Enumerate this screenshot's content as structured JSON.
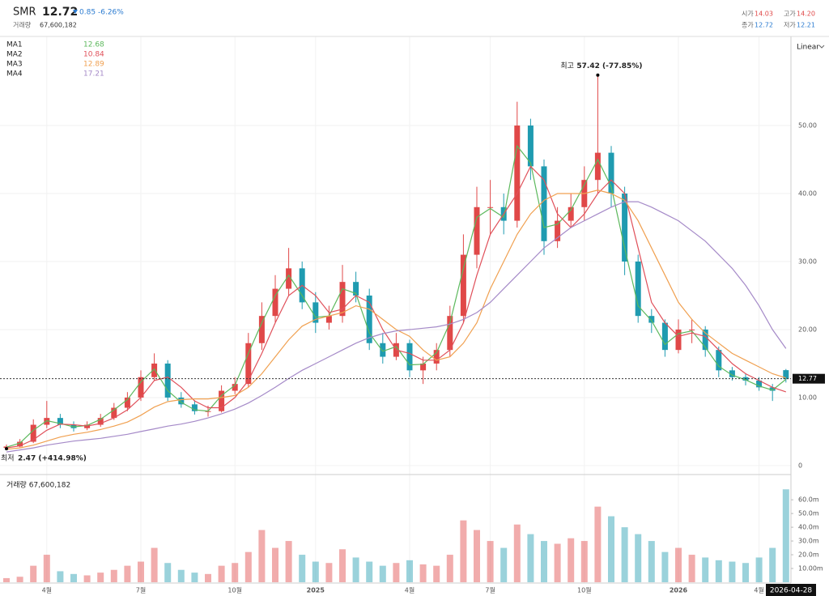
{
  "header": {
    "symbol": "SMR",
    "price": "12.72",
    "change": "0.85",
    "change_pct": "-6.26%",
    "volume_label": "거래량",
    "volume": "67,600,182",
    "ohlc": [
      {
        "label": "시가",
        "value": "14.03"
      },
      {
        "label": "고가",
        "value": "14.20"
      },
      {
        "label": "종가",
        "value": "12.72"
      },
      {
        "label": "저가",
        "value": "12.21"
      }
    ],
    "scale": "Linear"
  },
  "chart_data": {
    "type": "candlestick",
    "up_color": "#e04848",
    "down_color": "#1f9bb0",
    "xticks": [
      {
        "value": 3,
        "label": "4월"
      },
      {
        "value": 10,
        "label": "7월"
      },
      {
        "value": 17,
        "label": "10월"
      },
      {
        "value": 23,
        "label": "2025"
      },
      {
        "value": 30,
        "label": "4월"
      },
      {
        "value": 36,
        "label": "7월"
      },
      {
        "value": 43,
        "label": "10월"
      },
      {
        "value": 50,
        "label": "2026"
      },
      {
        "value": 56,
        "label": "4월"
      }
    ],
    "crosshair_date": "2026-04-28",
    "ylim": [
      -1.2,
      63.1
    ],
    "yticks": [
      0,
      {
        "value": 10,
        "label": "10.00"
      },
      {
        "value": 20,
        "label": "20.00"
      },
      {
        "value": 30,
        "label": "30.00"
      },
      {
        "value": 40,
        "label": "40.00"
      },
      {
        "value": 50,
        "label": "50.00"
      }
    ],
    "price_line": {
      "value": 12.77,
      "label": "12.77"
    },
    "open": [
      2.6,
      2.8,
      3.5,
      6,
      7,
      6,
      5.5,
      6,
      7,
      8.5,
      10,
      13,
      15,
      10,
      9,
      8,
      8,
      11,
      12,
      18,
      22,
      26,
      29,
      24,
      21,
      22,
      27,
      25,
      18,
      16,
      18,
      14,
      15,
      17,
      22,
      31,
      38,
      38,
      36,
      50,
      44,
      33,
      36,
      38,
      42,
      46,
      40,
      30,
      22,
      21,
      17,
      20,
      20,
      17,
      14,
      13,
      12.5,
      11.5,
      14.03
    ],
    "high": [
      3.1,
      3.9,
      6.8,
      9.5,
      7.6,
      6.5,
      6.5,
      7.6,
      9.2,
      10.8,
      14,
      16.5,
      15.5,
      10.8,
      9.6,
      8.8,
      11.8,
      13,
      19.5,
      24,
      28,
      32,
      30,
      25.5,
      23.5,
      29.5,
      28.5,
      26,
      19.5,
      19.5,
      18.5,
      16,
      18,
      23.5,
      34,
      41,
      42,
      40,
      53.5,
      51,
      45,
      38,
      40,
      44,
      57.42,
      47,
      41,
      31,
      23,
      21.5,
      21.5,
      21.5,
      20.5,
      17.5,
      14.5,
      13.5,
      13,
      12,
      14.2
    ],
    "low": [
      2.47,
      2.7,
      3.3,
      5.5,
      5.5,
      5,
      5.2,
      5.7,
      6.7,
      8,
      9.5,
      12.5,
      9.5,
      8.5,
      7.5,
      7.2,
      7.8,
      10.5,
      11.5,
      17,
      21,
      25,
      23,
      19.5,
      20,
      21,
      24,
      17,
      15,
      15.5,
      13,
      12,
      14,
      16,
      21,
      29,
      34,
      34,
      35,
      42,
      31,
      32,
      35,
      36,
      40,
      38,
      28,
      21,
      19.5,
      16,
      16.5,
      18,
      16,
      13,
      12.5,
      11.8,
      11,
      9.5,
      12.21
    ],
    "close": [
      2.8,
      3.5,
      6,
      7,
      6,
      5.5,
      6,
      7,
      8.5,
      10,
      13,
      15,
      10,
      9,
      8,
      8,
      11,
      12,
      18,
      22,
      26,
      29,
      24,
      21,
      22,
      27,
      25,
      18,
      16,
      18,
      14,
      15,
      17,
      22,
      31,
      38,
      38,
      36,
      50,
      44,
      33,
      36,
      38,
      42,
      46,
      40,
      30,
      22,
      21,
      17,
      20,
      20,
      17,
      14,
      13,
      12.5,
      11.5,
      11,
      12.72
    ],
    "series": [
      {
        "name": "MA1",
        "color": "#5cb85c",
        "values": [
          2.7,
          3.3,
          5.2,
          6.6,
          6.2,
          5.7,
          5.9,
          6.8,
          8.2,
          9.7,
          12.3,
          14.2,
          11,
          9.3,
          8.2,
          8,
          10.3,
          11.8,
          16.5,
          21,
          25,
          28,
          25,
          21.8,
          22,
          26,
          25.3,
          19.5,
          16.8,
          17.5,
          14.8,
          14.9,
          16.6,
          21,
          29,
          36.5,
          37.8,
          36.5,
          47,
          44.5,
          35,
          35.5,
          37.6,
          41.3,
          45,
          41,
          32,
          23.5,
          21.3,
          17.8,
          19.4,
          19.8,
          17.4,
          14.6,
          13.3,
          12.6,
          11.7,
          11.1,
          12.68
        ]
      },
      {
        "name": "MA2",
        "color": "#e0505a",
        "values": [
          2.6,
          2.9,
          3.8,
          5.2,
          6.1,
          6,
          5.8,
          6.2,
          7,
          8.2,
          10,
          12.5,
          13,
          11.5,
          9.5,
          8.5,
          8.5,
          10,
          12.5,
          16.5,
          21,
          25,
          26.5,
          25,
          22.5,
          23,
          25,
          24,
          20,
          17,
          16.5,
          15.5,
          15.5,
          17,
          21,
          28,
          34,
          37,
          40,
          44,
          42,
          37,
          35,
          37,
          40,
          42,
          40,
          32,
          24,
          21,
          19,
          19.5,
          19,
          17,
          15,
          13.5,
          12.5,
          11.5,
          10.84
        ]
      },
      {
        "name": "MA3",
        "color": "#f0a050",
        "values": [
          2.4,
          2.6,
          3,
          3.6,
          4.2,
          4.6,
          4.9,
          5.3,
          5.8,
          6.4,
          7.4,
          8.6,
          9.4,
          9.7,
          9.8,
          9.8,
          10,
          10.3,
          11.5,
          13.5,
          16,
          18.5,
          20.5,
          21.5,
          22,
          22.5,
          23.5,
          23,
          21.5,
          20,
          19,
          17,
          15.5,
          16,
          18,
          21,
          26,
          30,
          34,
          37,
          39,
          40,
          40,
          40,
          40.5,
          40,
          39,
          36,
          32,
          28,
          24,
          21.5,
          19.5,
          18,
          16.5,
          15.5,
          14.5,
          13.5,
          12.89
        ]
      },
      {
        "name": "MA4",
        "color": "#a58ac8",
        "values": [
          2,
          2.3,
          2.6,
          3,
          3.3,
          3.6,
          3.8,
          4,
          4.3,
          4.6,
          5,
          5.4,
          5.8,
          6.1,
          6.5,
          7,
          7.6,
          8.3,
          9.2,
          10.3,
          11.5,
          12.8,
          14,
          15,
          16,
          17,
          18,
          18.8,
          19.4,
          19.8,
          20,
          20.2,
          20.4,
          20.8,
          21.5,
          22.5,
          24,
          26,
          28,
          30,
          32,
          33.5,
          35,
          36,
          37,
          38,
          38.8,
          38.8,
          38,
          37,
          36,
          34.5,
          33,
          31,
          29,
          26.5,
          23.5,
          20,
          17.21
        ]
      }
    ],
    "annotations": {
      "high_label": "최고",
      "high_text": "57.42 (-77.85%)",
      "low_label": "최저",
      "low_text": "2.47 (+414.98%)"
    },
    "volume_title": "거래량 67,600,182",
    "volume": [
      3000000,
      4000000,
      12000000,
      20000000,
      8000000,
      6000000,
      5000000,
      7000000,
      9000000,
      12000000,
      15000000,
      25000000,
      14000000,
      9000000,
      7000000,
      6000000,
      12000000,
      14000000,
      22000000,
      38000000,
      25000000,
      30000000,
      20000000,
      15000000,
      14000000,
      24000000,
      18000000,
      15000000,
      12000000,
      14000000,
      16000000,
      13000000,
      12000000,
      20000000,
      45000000,
      38000000,
      30000000,
      25000000,
      42000000,
      35000000,
      30000000,
      28000000,
      32000000,
      30000000,
      55000000,
      48000000,
      40000000,
      35000000,
      30000000,
      22000000,
      25000000,
      20000000,
      18000000,
      16000000,
      15000000,
      14000000,
      18000000,
      25000000,
      67600182
    ],
    "vlim": [
      0,
      76000000
    ],
    "vticks": [
      {
        "value": 10000000,
        "label": "10.00m"
      },
      {
        "value": 20000000,
        "label": "20.0m"
      },
      {
        "value": 30000000,
        "label": "30.0m"
      },
      {
        "value": 40000000,
        "label": "40.0m"
      },
      {
        "value": 50000000,
        "label": "50.0m"
      },
      {
        "value": 60000000,
        "label": "60.0m"
      }
    ]
  }
}
